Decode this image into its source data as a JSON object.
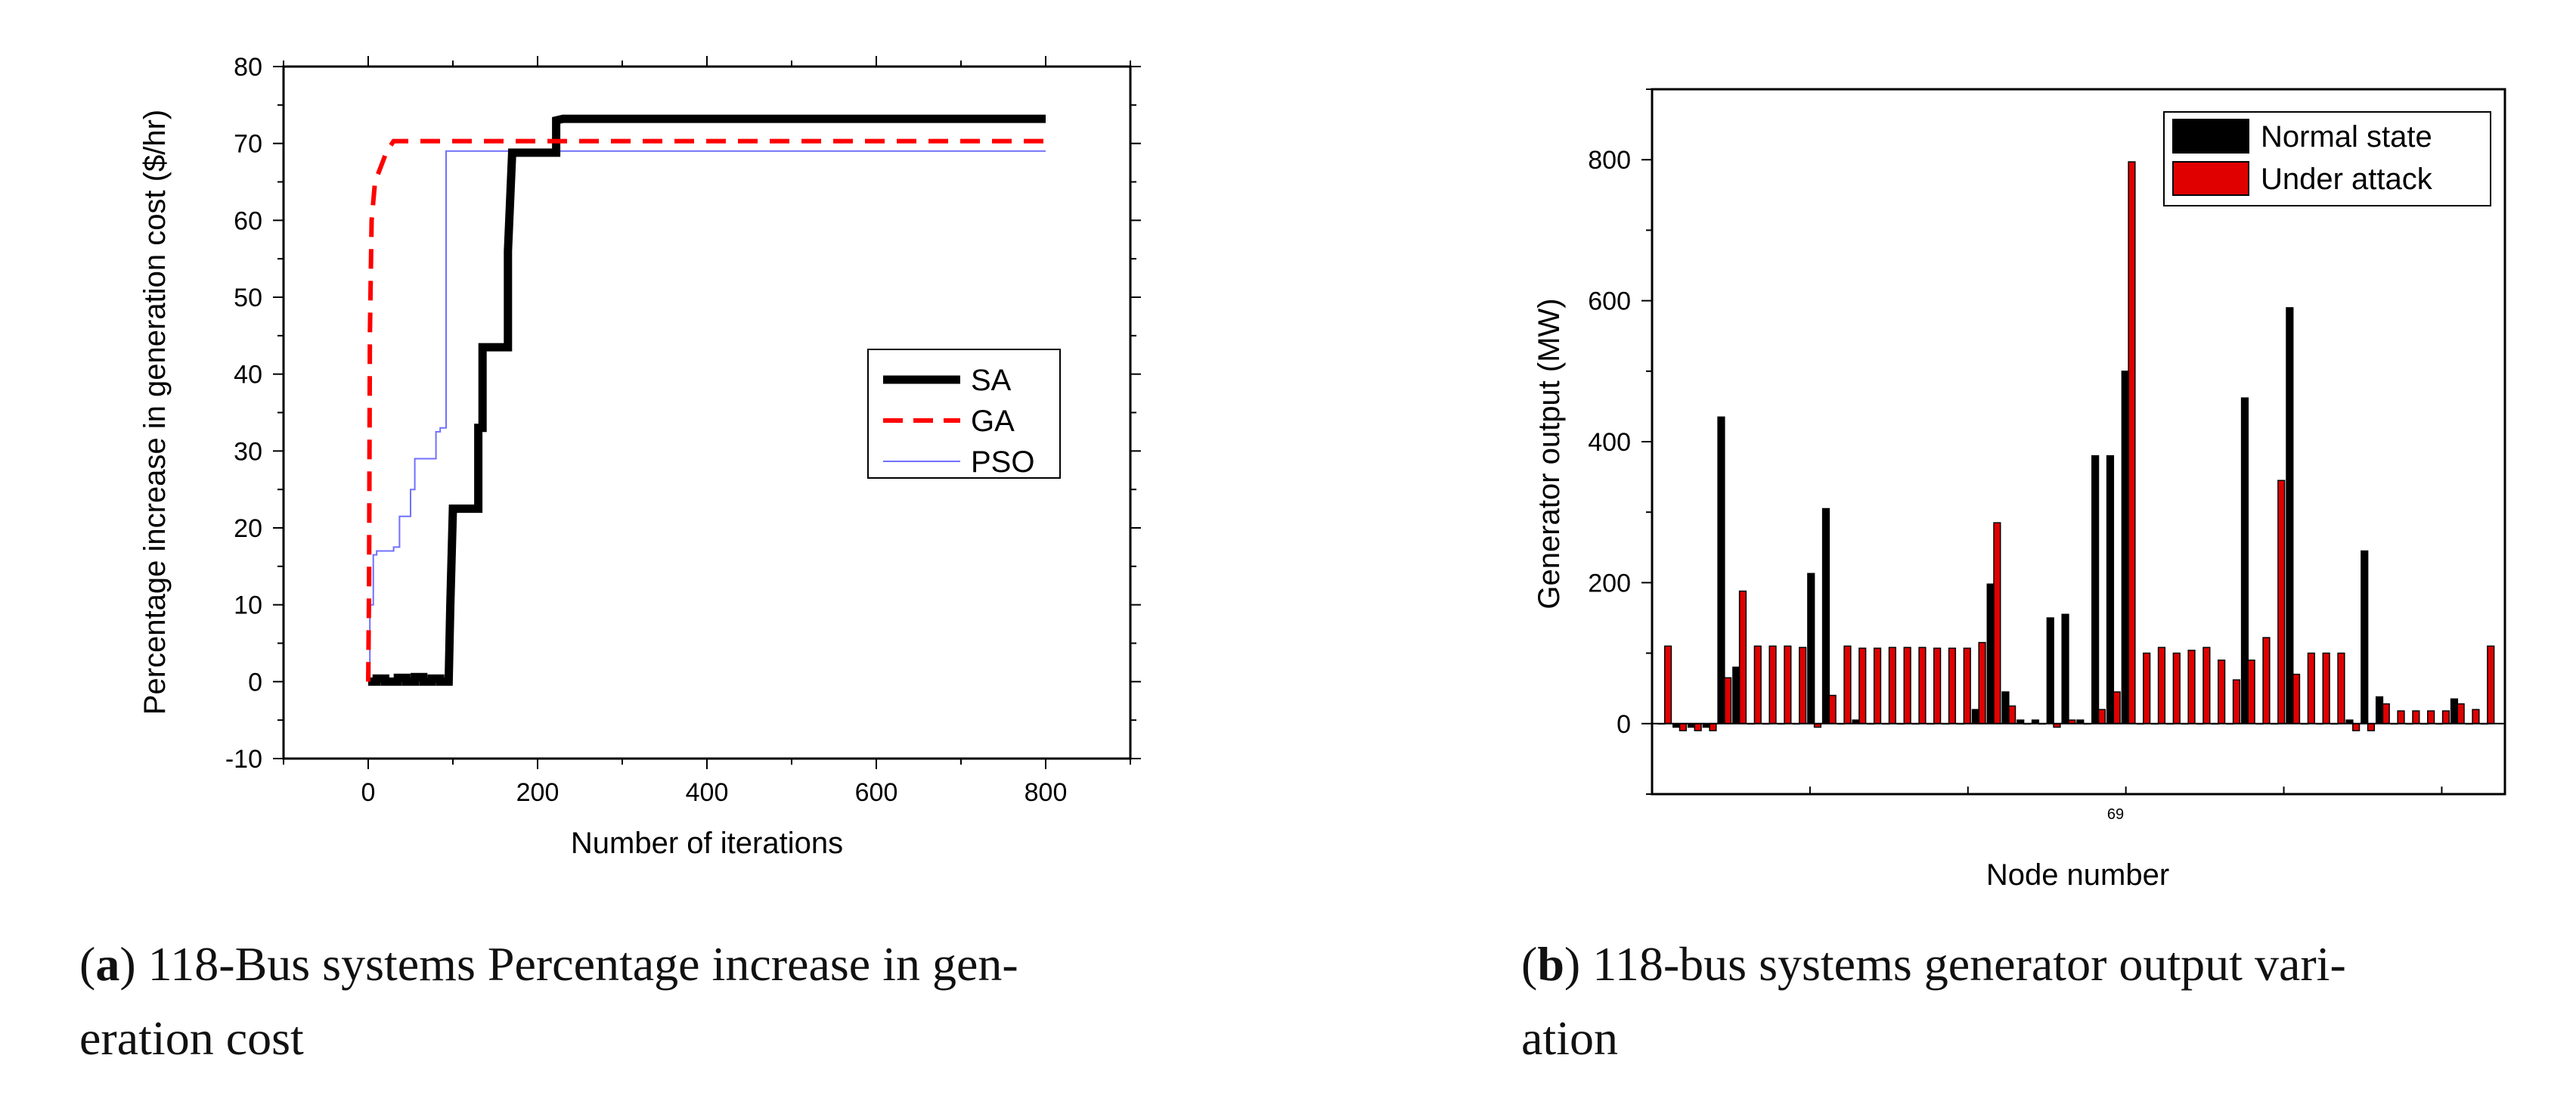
{
  "chart_data": [
    {
      "type": "line",
      "xlabel": "Number of iterations",
      "ylabel": "Percentage increase in generation cost ($/hr)",
      "xlim": [
        -100,
        900
      ],
      "ylim": [
        -10,
        80
      ],
      "xticks": [
        0,
        200,
        400,
        600,
        800
      ],
      "yticks": [
        -10,
        0,
        10,
        20,
        30,
        40,
        50,
        60,
        70,
        80
      ],
      "legend_position": "center-right",
      "series": [
        {
          "name": "SA",
          "color": "#000000",
          "style": "solid-thick",
          "x": [
            0,
            10,
            10,
            20,
            20,
            35,
            35,
            45,
            45,
            55,
            55,
            65,
            65,
            75,
            75,
            85,
            85,
            95,
            97,
            100,
            100,
            130,
            130,
            135,
            135,
            140,
            140,
            165,
            165,
            170,
            170,
            222,
            222,
            230,
            800
          ],
          "y": [
            0,
            0,
            0.4,
            0.4,
            0,
            0,
            0.5,
            0.5,
            0,
            0,
            0.6,
            0.6,
            0,
            0,
            0.4,
            0.4,
            0,
            0,
            10,
            22.5,
            22.5,
            22.5,
            33,
            33,
            43.5,
            43.5,
            43.5,
            43.5,
            56,
            68.8,
            68.8,
            68.8,
            73,
            73.2,
            73.2
          ]
        },
        {
          "name": "GA",
          "color": "#ff0000",
          "style": "dashed",
          "x": [
            0,
            1,
            2,
            4,
            8,
            15,
            22,
            30,
            800
          ],
          "y": [
            0,
            12,
            45,
            60,
            65,
            67,
            69,
            70.3,
            70.3
          ]
        },
        {
          "name": "PSO",
          "color": "#7070ff",
          "style": "solid-thin",
          "x": [
            0,
            2,
            2,
            6,
            6,
            10,
            10,
            30,
            30,
            37,
            37,
            50,
            50,
            55,
            55,
            80,
            80,
            85,
            85,
            92,
            92,
            800
          ],
          "y": [
            0,
            0,
            10,
            10,
            16.5,
            16.5,
            17,
            17,
            17.5,
            17.5,
            21.5,
            21.5,
            25,
            25,
            29,
            29,
            32.5,
            32.5,
            33,
            33,
            69,
            69
          ]
        }
      ]
    },
    {
      "type": "bar",
      "xlabel": "Node number",
      "ylabel": "Generator output (MW)",
      "ylim": [
        -100,
        900
      ],
      "yticks": [
        0,
        200,
        400,
        600,
        800
      ],
      "x_tick_label": "69",
      "legend_position": "top-right",
      "series": [
        {
          "name": "Normal state",
          "color": "#000000",
          "values": [
            0,
            -5,
            -5,
            -5,
            435,
            80,
            0,
            0,
            0,
            0,
            213,
            305,
            0,
            5,
            0,
            0,
            0,
            0,
            0,
            0,
            0,
            20,
            198,
            45,
            5,
            5,
            150,
            155,
            5,
            380,
            380,
            500,
            0,
            0,
            0,
            0,
            0,
            0,
            0,
            462,
            0,
            0,
            590,
            0,
            0,
            0,
            5,
            245,
            38,
            0,
            0,
            0,
            0,
            35,
            0,
            0
          ]
        },
        {
          "name": "Under attack",
          "color": "#e00000",
          "values": [
            110,
            -10,
            -10,
            -10,
            65,
            188,
            110,
            110,
            110,
            108,
            -5,
            40,
            110,
            107,
            107,
            108,
            108,
            108,
            107,
            107,
            107,
            115,
            285,
            25,
            0,
            0,
            -5,
            5,
            0,
            20,
            45,
            797,
            100,
            108,
            100,
            104,
            108,
            90,
            62,
            90,
            122,
            345,
            70,
            100,
            100,
            100,
            -10,
            -10,
            28,
            18,
            18,
            18,
            18,
            28,
            20,
            110
          ]
        }
      ]
    }
  ],
  "captions": {
    "a": {
      "label": "a",
      "line1": " 118-Bus systems Percentage increase in gen-",
      "line2": "eration cost"
    },
    "b": {
      "label": "b",
      "line1": " 118-bus systems generator output vari-",
      "line2": "ation"
    }
  }
}
